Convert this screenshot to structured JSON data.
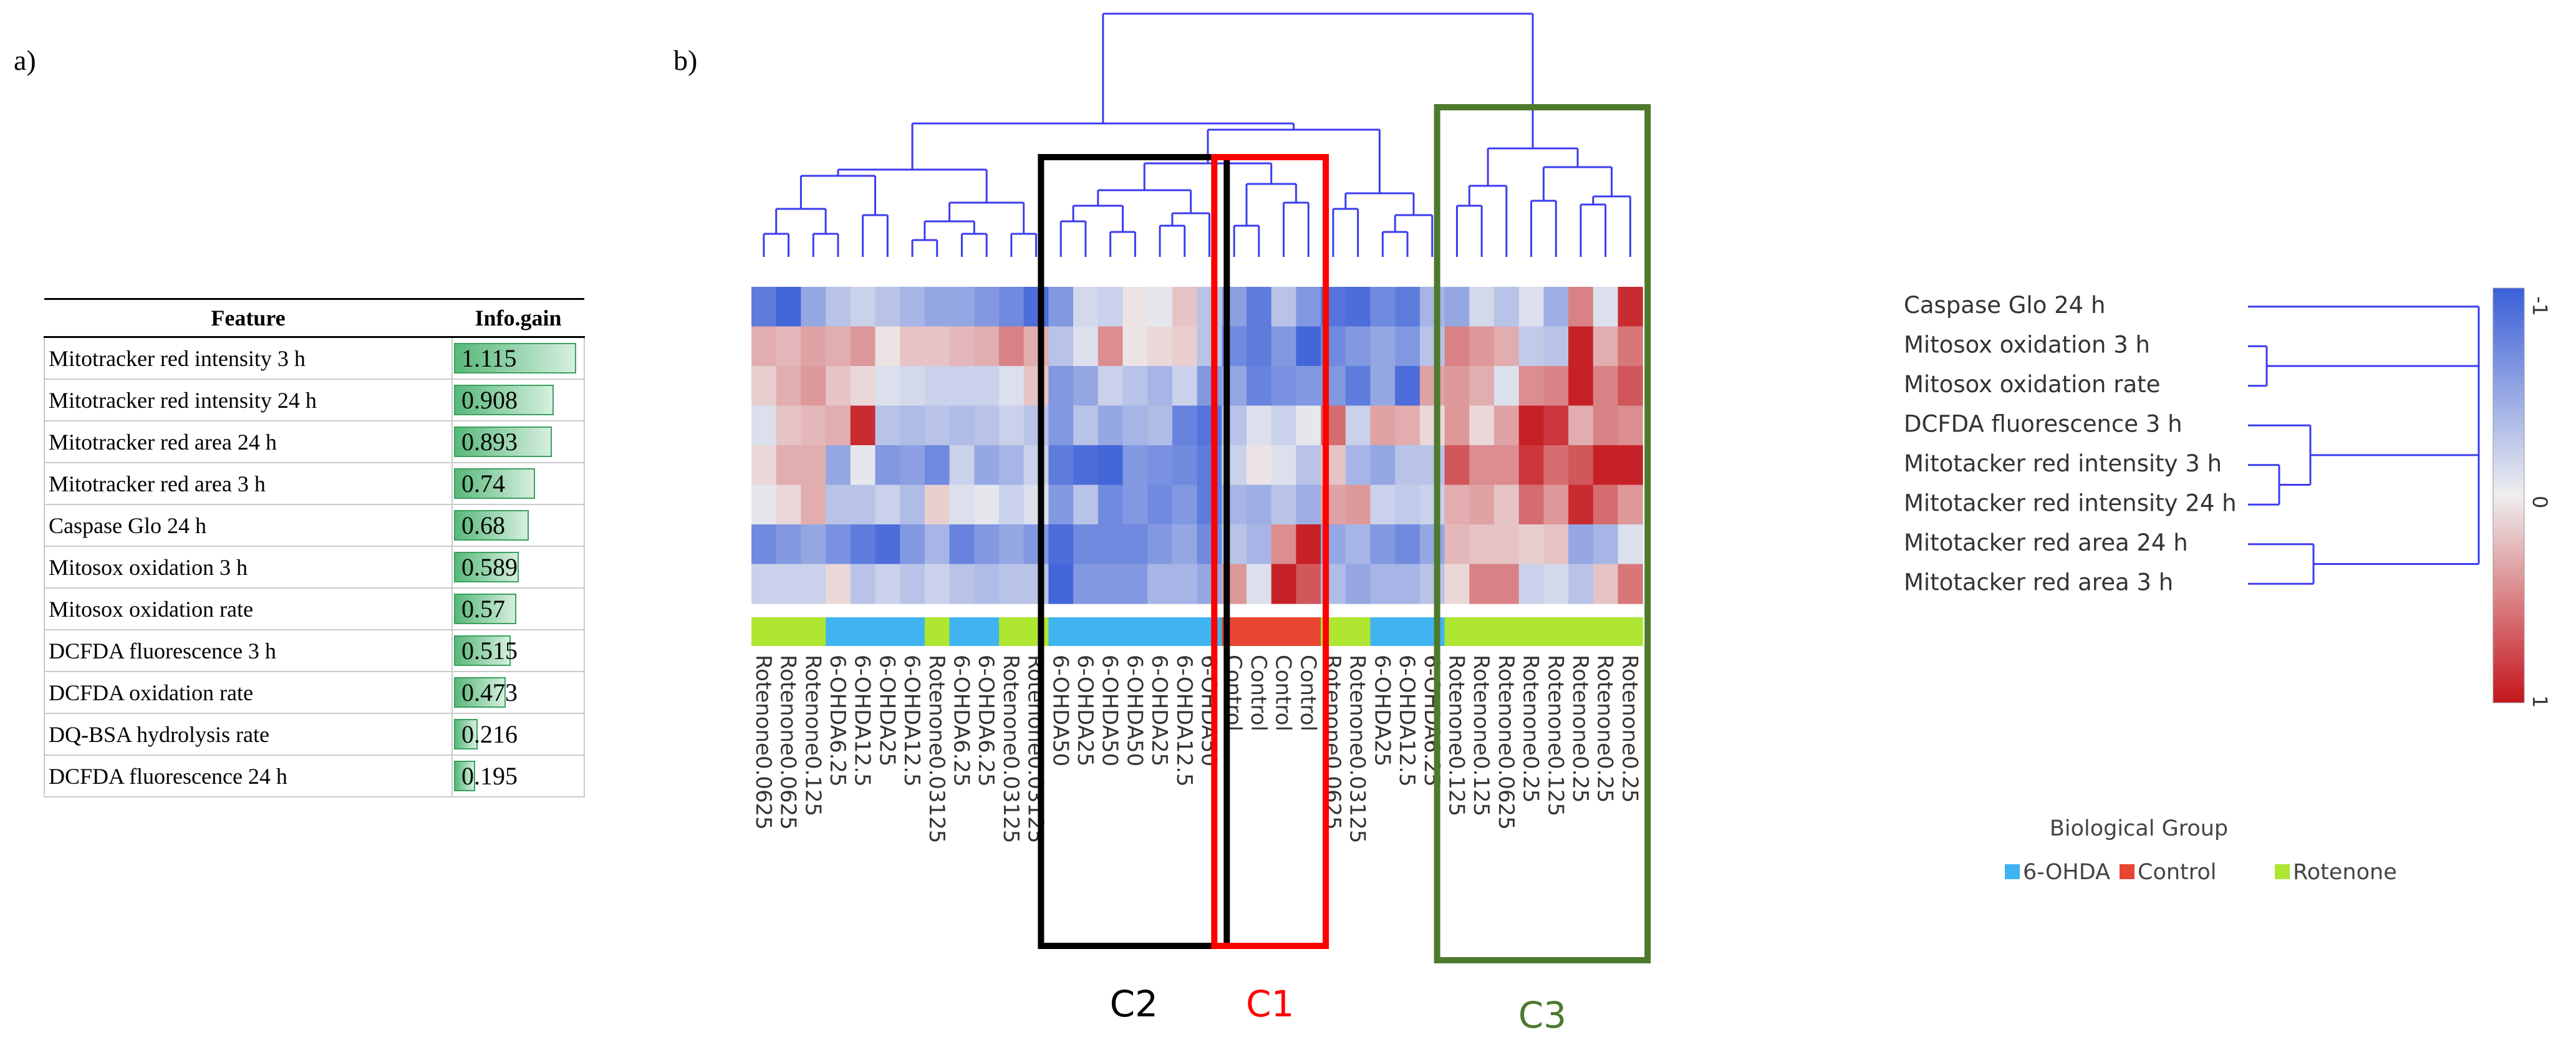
{
  "panel_a": {
    "label": "a)",
    "headers": {
      "feature": "Feature",
      "gain": "Info.gain"
    },
    "rows": [
      {
        "feature": "Mitotracker red intensity 3 h",
        "gain": "1.115",
        "value": 1.115
      },
      {
        "feature": "Mitotracker red intensity 24 h",
        "gain": "0.908",
        "value": 0.908
      },
      {
        "feature": "Mitotracker red area 24 h",
        "gain": "0.893",
        "value": 0.893
      },
      {
        "feature": "Mitotracker red area 3 h",
        "gain": "0.74",
        "value": 0.74
      },
      {
        "feature": "Caspase Glo 24 h",
        "gain": "0.68",
        "value": 0.68
      },
      {
        "feature": "Mitosox oxidation 3 h",
        "gain": "0.589",
        "value": 0.589
      },
      {
        "feature": "Mitosox oxidation rate",
        "gain": "0.57",
        "value": 0.57
      },
      {
        "feature": "DCFDA fluorescence 3 h",
        "gain": "0.515",
        "value": 0.515
      },
      {
        "feature": "DCFDA oxidation rate",
        "gain": "0.473",
        "value": 0.473
      },
      {
        "feature": "DQ-BSA hydrolysis rate",
        "gain": "0.216",
        "value": 0.216
      },
      {
        "feature": "DCFDA fluorescence 24 h",
        "gain": "0.195",
        "value": 0.195
      }
    ]
  },
  "chart_data": {
    "type": "heatmap",
    "panel_label": "b)",
    "columns": [
      "Rotenone0.0625",
      "Rotenone0.0625",
      "Rotenone0.125",
      "6-OHDA6.25",
      "6-OHDA12.5",
      "6-OHDA25",
      "6-OHDA12.5",
      "Rotenone0.03125",
      "6-OHDA6.25",
      "6-OHDA6.25",
      "Rotenone0.03125",
      "Rotenone0.03125",
      "6-OHDA50",
      "6-OHDA25",
      "6-OHDA50",
      "6-OHDA50",
      "6-OHDA25",
      "6-OHDA12.5",
      "6-OHDA50",
      "Control",
      "Control",
      "Control",
      "Control",
      "Rotenone0.0625",
      "Rotenone0.03125",
      "6-OHDA25",
      "6-OHDA12.5",
      "6-OHDA6.25",
      "Rotenone0.125",
      "Rotenone0.125",
      "Rotenone0.0625",
      "Rotenone0.25",
      "Rotenone0.125",
      "Rotenone0.25",
      "Rotenone0.25",
      "Rotenone0.25"
    ],
    "group_of_column": [
      "Rotenone",
      "Rotenone",
      "Rotenone",
      "6-OHDA",
      "6-OHDA",
      "6-OHDA",
      "6-OHDA",
      "Rotenone",
      "6-OHDA",
      "6-OHDA",
      "Rotenone",
      "Rotenone",
      "6-OHDA",
      "6-OHDA",
      "6-OHDA",
      "6-OHDA",
      "6-OHDA",
      "6-OHDA",
      "6-OHDA",
      "Control",
      "Control",
      "Control",
      "Control",
      "Rotenone",
      "Rotenone",
      "6-OHDA",
      "6-OHDA",
      "6-OHDA",
      "Rotenone",
      "Rotenone",
      "Rotenone",
      "Rotenone",
      "Rotenone",
      "Rotenone",
      "Rotenone",
      "Rotenone"
    ],
    "rows": [
      "Caspase Glo 24 h",
      "Mitosox oxidation 3 h",
      "Mitosox oxidation rate",
      "DCFDA fluorescence 3 h",
      "Mitotacker red intensity 3 h",
      "Mitotacker red intensity 24 h",
      "Mitotacker red area 24 h",
      "Mitotacker red area 3 h"
    ],
    "values": [
      [
        -0.8,
        -0.95,
        -0.5,
        -0.3,
        -0.2,
        -0.3,
        -0.4,
        -0.5,
        -0.5,
        -0.6,
        -0.7,
        -0.9,
        -0.6,
        -0.15,
        -0.2,
        0.05,
        -0.05,
        0.2,
        -0.3,
        -0.55,
        -0.8,
        -0.3,
        -0.6,
        -0.85,
        -0.9,
        -0.7,
        -0.8,
        -0.4,
        -0.5,
        -0.15,
        -0.3,
        -0.1,
        -0.45,
        0.5,
        -0.1,
        0.9
      ],
      [
        0.3,
        0.25,
        0.35,
        0.3,
        0.4,
        0.05,
        0.2,
        0.2,
        0.25,
        0.3,
        0.5,
        0.3,
        -0.3,
        -0.1,
        0.45,
        0.05,
        0.1,
        0.15,
        -0.3,
        -0.7,
        -0.8,
        -0.6,
        -0.95,
        -0.7,
        -0.6,
        -0.5,
        -0.6,
        -0.3,
        0.5,
        0.4,
        0.3,
        -0.25,
        -0.3,
        0.95,
        0.3,
        0.55
      ],
      [
        0.15,
        0.3,
        0.4,
        0.2,
        0.1,
        -0.1,
        -0.15,
        -0.2,
        -0.2,
        -0.2,
        -0.1,
        0.2,
        -0.6,
        -0.5,
        -0.2,
        -0.3,
        -0.4,
        -0.2,
        -0.6,
        -0.5,
        -0.75,
        -0.65,
        -0.6,
        -0.6,
        -0.8,
        -0.5,
        -0.9,
        0.35,
        0.4,
        0.3,
        -0.1,
        0.45,
        0.5,
        0.95,
        0.5,
        0.7
      ],
      [
        -0.1,
        0.2,
        0.25,
        0.3,
        0.9,
        -0.3,
        -0.35,
        -0.3,
        -0.35,
        -0.3,
        -0.2,
        -0.3,
        -0.6,
        -0.3,
        -0.5,
        -0.4,
        -0.35,
        -0.75,
        -0.85,
        -0.3,
        -0.1,
        -0.2,
        -0.05,
        0.6,
        -0.2,
        0.35,
        0.3,
        0.1,
        0.4,
        0.1,
        0.35,
        0.95,
        0.85,
        0.3,
        0.5,
        0.45
      ],
      [
        0.1,
        0.3,
        0.3,
        -0.5,
        -0.05,
        -0.6,
        -0.55,
        -0.7,
        -0.2,
        -0.5,
        -0.4,
        -0.2,
        -0.8,
        -0.9,
        -0.95,
        -0.6,
        -0.65,
        -0.7,
        -0.8,
        -0.2,
        0.05,
        -0.1,
        -0.3,
        0.2,
        -0.4,
        -0.5,
        -0.3,
        -0.3,
        0.7,
        0.45,
        0.45,
        0.85,
        0.6,
        0.7,
        0.95,
        0.95
      ],
      [
        -0.05,
        0.1,
        0.3,
        -0.3,
        -0.3,
        -0.2,
        -0.35,
        0.15,
        -0.1,
        -0.05,
        -0.2,
        -0.1,
        -0.6,
        -0.3,
        -0.7,
        -0.6,
        -0.7,
        -0.6,
        -0.8,
        -0.4,
        -0.45,
        -0.3,
        -0.45,
        0.35,
        0.4,
        -0.2,
        -0.25,
        -0.2,
        0.3,
        0.35,
        0.2,
        0.6,
        0.4,
        0.9,
        0.6,
        0.4
      ],
      [
        -0.7,
        -0.6,
        -0.5,
        -0.65,
        -0.8,
        -0.9,
        -0.6,
        -0.4,
        -0.75,
        -0.6,
        -0.5,
        -0.6,
        -0.9,
        -0.7,
        -0.7,
        -0.7,
        -0.6,
        -0.5,
        -0.7,
        -0.3,
        -0.4,
        0.45,
        0.95,
        -0.5,
        -0.4,
        -0.6,
        -0.7,
        -0.5,
        0.25,
        0.2,
        0.2,
        0.15,
        0.2,
        -0.5,
        -0.4,
        -0.1
      ],
      [
        -0.2,
        -0.2,
        -0.2,
        0.1,
        -0.3,
        -0.2,
        -0.3,
        -0.2,
        -0.3,
        -0.35,
        -0.3,
        -0.3,
        -0.95,
        -0.6,
        -0.6,
        -0.6,
        -0.4,
        -0.4,
        -0.5,
        0.4,
        -0.1,
        0.95,
        0.7,
        -0.35,
        -0.5,
        -0.4,
        -0.4,
        -0.3,
        0.1,
        0.5,
        0.5,
        -0.2,
        -0.15,
        -0.3,
        0.2,
        0.55
      ]
    ],
    "scale": {
      "min_label": "-1",
      "mid_label": "0",
      "max_label": "1",
      "min": -1,
      "max": 1,
      "neg_color": "#3a5fd8",
      "mid_color": "#eeeeee",
      "pos_color": "#c4161c"
    },
    "groups": [
      {
        "name": "6-OHDA",
        "color": "#3fb4f0"
      },
      {
        "name": "Control",
        "color": "#e64632"
      },
      {
        "name": "Rotenone",
        "color": "#aee631"
      }
    ],
    "legend_title": "Biological Group",
    "clusters": [
      {
        "label": "C2",
        "first_col": 12,
        "last_col": 18,
        "color": "#000000"
      },
      {
        "label": "C1",
        "first_col": 19,
        "last_col": 22,
        "color": "#ff0000"
      },
      {
        "label": "C3",
        "first_col": 28,
        "last_col": 35,
        "color": "#4d7a2e"
      }
    ],
    "dendrogram_color": "#3b3bf0"
  }
}
